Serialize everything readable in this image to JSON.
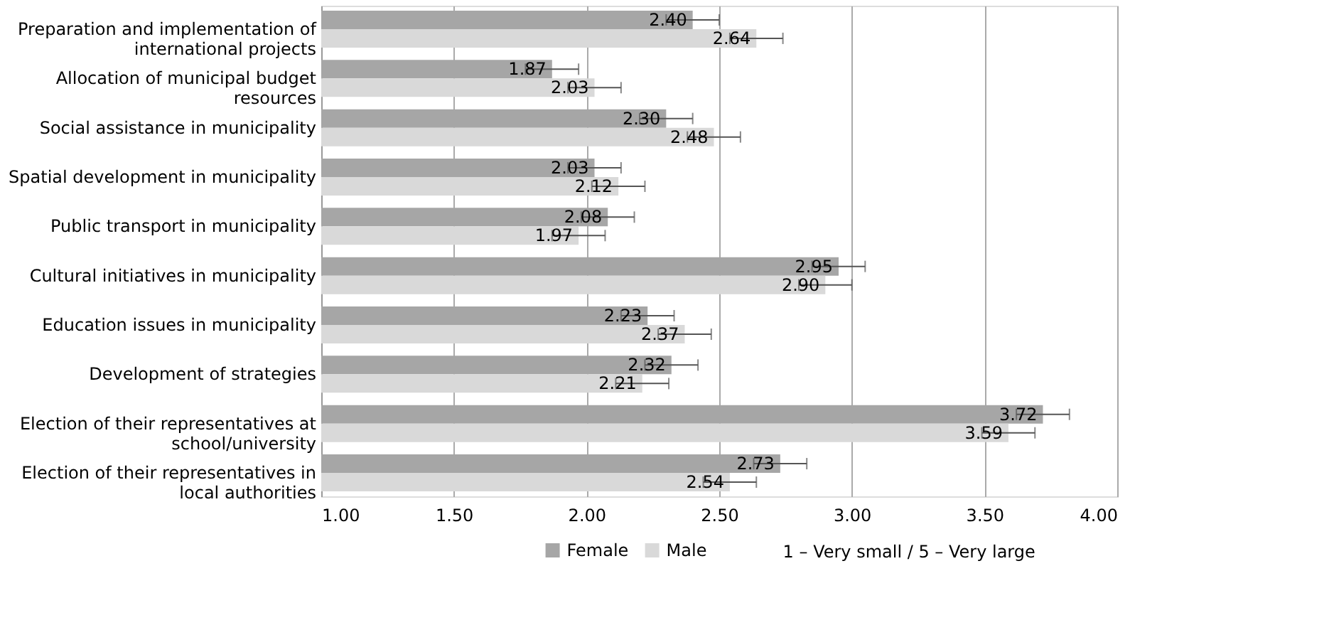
{
  "chart_data": {
    "type": "bar",
    "orientation": "horizontal",
    "categories": [
      "Preparation and implementation of international projects",
      "Allocation of municipal budget resources",
      "Social assistance in municipality",
      "Spatial development in municipality",
      "Public transport in municipality",
      "Cultural initiatives in municipality",
      "Education issues in municipality",
      "Development of strategies",
      "Election of their representatives at school/university",
      "Election of their representatives in local authorities"
    ],
    "series": [
      {
        "name": "Female",
        "color": "#a6a6a6",
        "values": [
          2.4,
          1.87,
          2.3,
          2.03,
          2.08,
          2.95,
          2.23,
          2.32,
          3.72,
          2.73
        ],
        "errors": [
          0.1,
          0.1,
          0.1,
          0.1,
          0.1,
          0.1,
          0.1,
          0.1,
          0.1,
          0.1
        ],
        "value_labels": [
          "2.40",
          "1.87",
          "2.30",
          "2.03",
          "2.08",
          "2.95",
          "2.23",
          "2.32",
          "3.72",
          "2.73"
        ]
      },
      {
        "name": "Male",
        "color": "#d9d9d9",
        "values": [
          2.64,
          2.03,
          2.48,
          2.12,
          1.97,
          2.9,
          2.37,
          2.21,
          3.59,
          2.54
        ],
        "errors": [
          0.1,
          0.1,
          0.1,
          0.1,
          0.1,
          0.1,
          0.1,
          0.1,
          0.1,
          0.1
        ],
        "value_labels": [
          "2.64",
          "2.03",
          "2.48",
          "2.12",
          "1.97",
          "2.90",
          "2.37",
          "2.21",
          "3.59",
          "2.54"
        ]
      }
    ],
    "xlim": [
      1,
      4
    ],
    "xticks": [
      {
        "value": 1,
        "label": "1.00"
      },
      {
        "value": 1.5,
        "label": "1.50"
      },
      {
        "value": 2,
        "label": "2.00"
      },
      {
        "value": 2.5,
        "label": "2.50"
      },
      {
        "value": 3,
        "label": "3.00"
      },
      {
        "value": 3.5,
        "label": "3.50"
      },
      {
        "value": 4,
        "label": "4.00"
      }
    ],
    "grid": "x",
    "legend": "bottom",
    "annotations": [
      "1 – Very small / 5 – Very large"
    ]
  }
}
